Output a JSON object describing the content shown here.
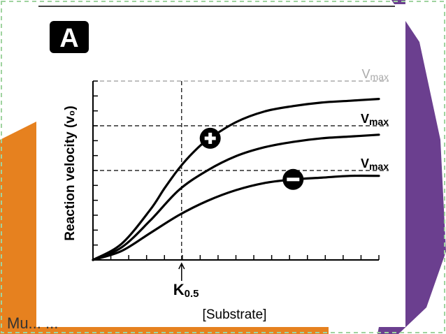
{
  "slide": {
    "footer_text": "Mu... ...",
    "colors": {
      "background": "#ffffff",
      "dashed_border": "#9fd39f",
      "orange_shape": "#e6811f",
      "purple_shape": "#6b3f8f",
      "card": "#ffffff",
      "ink": "#000000"
    }
  },
  "chart_data": {
    "type": "line",
    "panel_label": "A",
    "title": "",
    "xlabel": "[Substrate]",
    "ylabel": "Reaction velocity (v₀)",
    "xlim": [
      0,
      10
    ],
    "ylim": [
      0,
      10
    ],
    "k05_label": "K",
    "k05_subscript": "0.5",
    "k05_x": 3.1,
    "grid": false,
    "vmax_lines": [
      {
        "label_main": "V",
        "label_sub": "max",
        "y": 10.0,
        "faded": true
      },
      {
        "label_main": "V",
        "label_sub": "max",
        "y": 7.5,
        "faded": false
      },
      {
        "label_main": "V",
        "label_sub": "max",
        "y": 5.0,
        "faded": false
      }
    ],
    "series": [
      {
        "marker": "+",
        "x": [
          0,
          1,
          2,
          2.5,
          3,
          3.5,
          4,
          5,
          6,
          7,
          8,
          9,
          10
        ],
        "y": [
          0,
          0.9,
          2.8,
          4.0,
          5.1,
          6.0,
          6.7,
          7.7,
          8.3,
          8.6,
          8.8,
          8.9,
          9.0
        ],
        "marker_at_x": 4.1
      },
      {
        "marker": "",
        "x": [
          0,
          1,
          2,
          3,
          4,
          5,
          6,
          7,
          8,
          9,
          10
        ],
        "y": [
          0,
          0.7,
          2.2,
          3.9,
          5.0,
          5.8,
          6.3,
          6.6,
          6.8,
          6.9,
          7.0
        ]
      },
      {
        "marker": "−",
        "x": [
          0,
          1,
          2,
          3,
          4,
          5,
          6,
          7,
          8,
          9,
          10
        ],
        "y": [
          0,
          0.5,
          1.5,
          2.5,
          3.3,
          3.9,
          4.3,
          4.5,
          4.6,
          4.7,
          4.7
        ],
        "marker_at_x": 7.0
      }
    ]
  }
}
